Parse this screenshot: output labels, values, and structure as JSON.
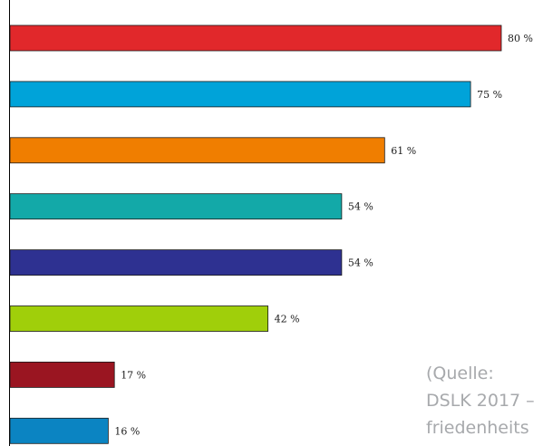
{
  "chart_data": {
    "type": "bar",
    "orientation": "horizontal",
    "categories": [
      "",
      "",
      "",
      "",
      "",
      "",
      "",
      ""
    ],
    "values": [
      80,
      75,
      61,
      54,
      54,
      42,
      17,
      16
    ],
    "value_labels": [
      "80 %",
      "75 %",
      "61 %",
      "54 %",
      "54 %",
      "42 %",
      "17 %",
      "16 %"
    ],
    "colors": [
      "#e1282b",
      "#00a3d9",
      "#f07e00",
      "#13a9a8",
      "#2e3191",
      "#a0cf0a",
      "#9a1521",
      "#0b84c2"
    ],
    "xlim": [
      0,
      80
    ],
    "grid": false,
    "source_lines": [
      "(Quelle:",
      "DSLK 2017 –",
      "friedenheits"
    ]
  }
}
